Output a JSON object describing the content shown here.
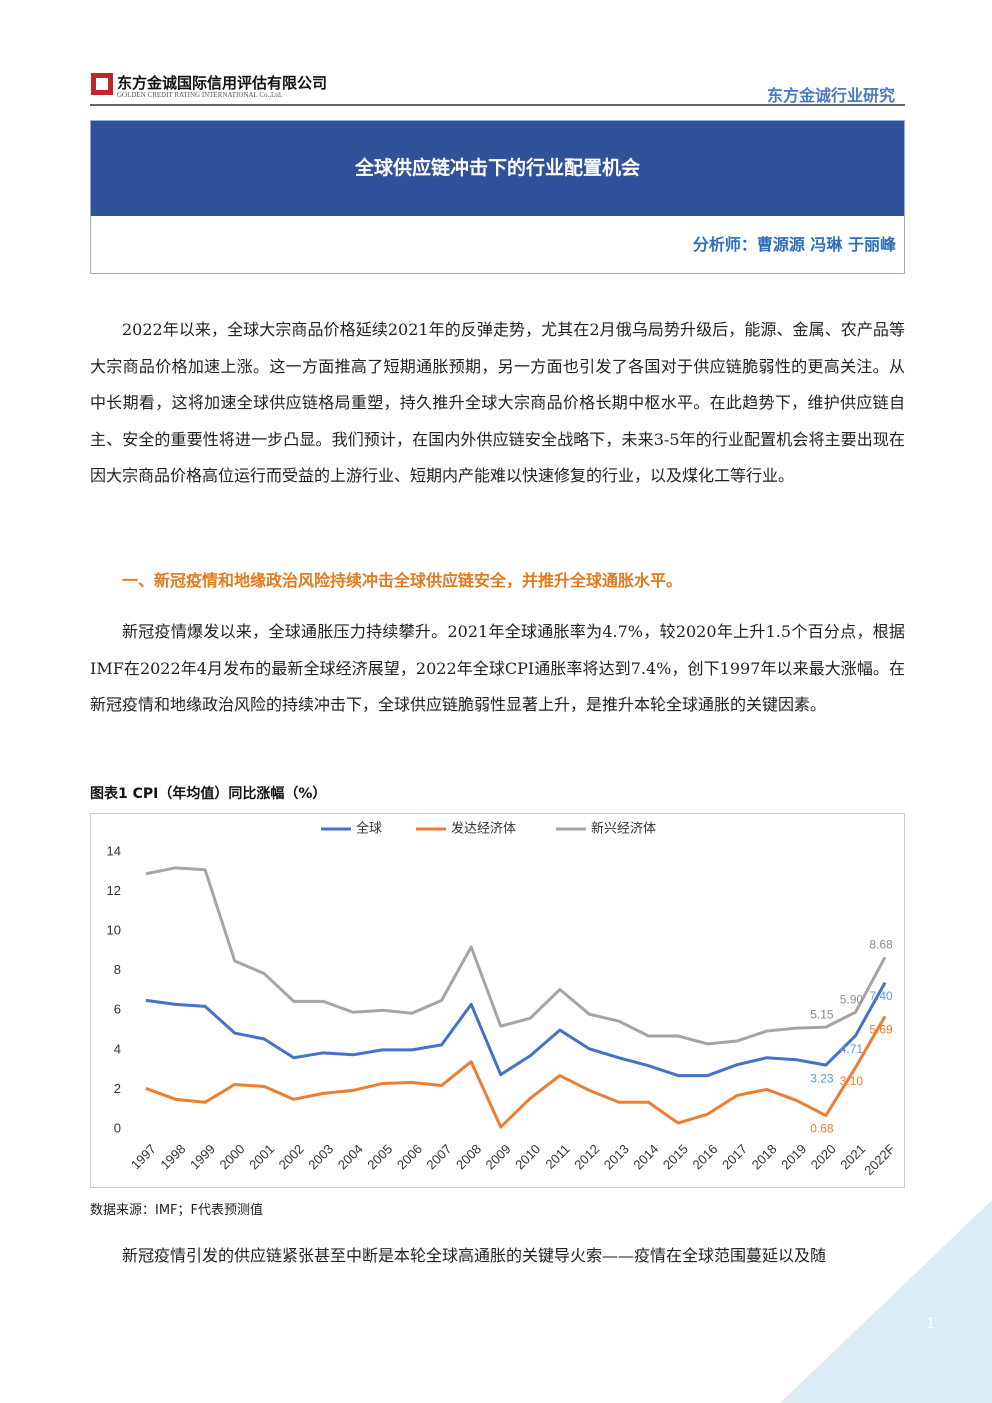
{
  "header": {
    "company": "东方金诚国际信用评估有限公司",
    "company_en": "GOLDEN CREDIT RATING INTERNATIONAL Co.,Ltd.",
    "series_name": "东方金诚行业研究"
  },
  "title": "全球供应链冲击下的行业配置机会",
  "analysts": "分析师：曹源源  冯琳  于丽峰",
  "paragraphs": [
    "2022年以来，全球大宗商品价格延续2021年的反弹走势，尤其在2月俄乌局势升级后，能源、金属、农产品等大宗商品价格加速上涨。这一方面推高了短期通胀预期，另一方面也引发了各国对于供应链脆弱性的更高关注。从中长期看，这将加速全球供应链格局重塑，持久推升全球大宗商品价格长期中枢水平。在此趋势下，维护供应链自主、安全的重要性将进一步凸显。我们预计，在国内外供应链安全战略下，未来3-5年的行业配置机会将主要出现在因大宗商品价格高位运行而受益的上游行业、短期内产能难以快速修复的行业，以及煤化工等行业。"
  ],
  "section_heading": "一、新冠疫情和地缘政治风险持续冲击全球供应链安全，并推升全球通胀水平。",
  "paragraphs2": [
    "新冠疫情爆发以来，全球通胀压力持续攀升。2021年全球通胀率为4.7%，较2020年上升1.5个百分点，根据IMF在2022年4月发布的最新全球经济展望，2022年全球CPI通胀率将达到7.4%，创下1997年以来最大涨幅。在新冠疫情和地缘政治风险的持续冲击下，全球供应链脆弱性显著上升，是推升本轮全球通胀的关键因素。"
  ],
  "chart_data": {
    "type": "line",
    "title": "图表1  CPI（年均值）同比涨幅（%）",
    "categories": [
      "1997",
      "1998",
      "1999",
      "2000",
      "2001",
      "2002",
      "2003",
      "2004",
      "2005",
      "2006",
      "2007",
      "2008",
      "2009",
      "2010",
      "2011",
      "2012",
      "2013",
      "2014",
      "2015",
      "2016",
      "2017",
      "2018",
      "2019",
      "2020",
      "2021",
      "2022F"
    ],
    "series": [
      {
        "name": "全球",
        "color": "#4472c4",
        "label_color": "#5b9bd5",
        "values": [
          6.5,
          6.3,
          6.2,
          4.85,
          4.55,
          3.6,
          3.85,
          3.75,
          4.0,
          4.0,
          4.25,
          6.3,
          2.75,
          3.7,
          5.0,
          4.05,
          3.6,
          3.2,
          2.7,
          2.7,
          3.25,
          3.6,
          3.5,
          3.23,
          4.71,
          7.4
        ],
        "value_labels": [
          null,
          null,
          null,
          null,
          null,
          null,
          null,
          null,
          null,
          null,
          null,
          null,
          null,
          null,
          null,
          null,
          null,
          null,
          null,
          null,
          null,
          null,
          null,
          "3.23",
          "4.71",
          "7.40"
        ]
      },
      {
        "name": "发达经济体",
        "color": "#ed7d31",
        "label_color": "#ed7d31",
        "values": [
          2.05,
          1.5,
          1.35,
          2.25,
          2.15,
          1.5,
          1.8,
          1.95,
          2.3,
          2.35,
          2.2,
          3.4,
          0.1,
          1.55,
          2.7,
          1.95,
          1.35,
          1.35,
          0.3,
          0.75,
          1.7,
          2.0,
          1.45,
          0.68,
          3.1,
          5.69
        ],
        "value_labels": [
          null,
          null,
          null,
          null,
          null,
          null,
          null,
          null,
          null,
          null,
          null,
          null,
          null,
          null,
          null,
          null,
          null,
          null,
          null,
          null,
          null,
          null,
          null,
          "0.68",
          "3.10",
          "5.69"
        ]
      },
      {
        "name": "新兴经济体",
        "color": "#a5a5a5",
        "label_color": "#8c8c8c",
        "values": [
          12.9,
          13.2,
          13.1,
          8.5,
          7.85,
          6.45,
          6.45,
          5.9,
          6.0,
          5.85,
          6.5,
          9.2,
          5.2,
          5.6,
          7.05,
          5.8,
          5.45,
          4.7,
          4.7,
          4.3,
          4.45,
          4.95,
          5.1,
          5.15,
          5.9,
          8.68
        ],
        "value_labels": [
          null,
          null,
          null,
          null,
          null,
          null,
          null,
          null,
          null,
          null,
          null,
          null,
          null,
          null,
          null,
          null,
          null,
          null,
          null,
          null,
          null,
          null,
          null,
          "5.15",
          "5.90",
          "8.68"
        ]
      }
    ],
    "ylim": [
      0,
      14
    ],
    "yticks": [
      0,
      2,
      4,
      6,
      8,
      10,
      12,
      14
    ],
    "grid": false,
    "legend": "top"
  },
  "source": "数据来源：IMF；F代表预测值",
  "paragraphs3": [
    "新冠疫情引发的供应链紧张甚至中断是本轮全球高通胀的关键导火索——疫情在全球范围蔓延以及随"
  ],
  "page_number": "1"
}
